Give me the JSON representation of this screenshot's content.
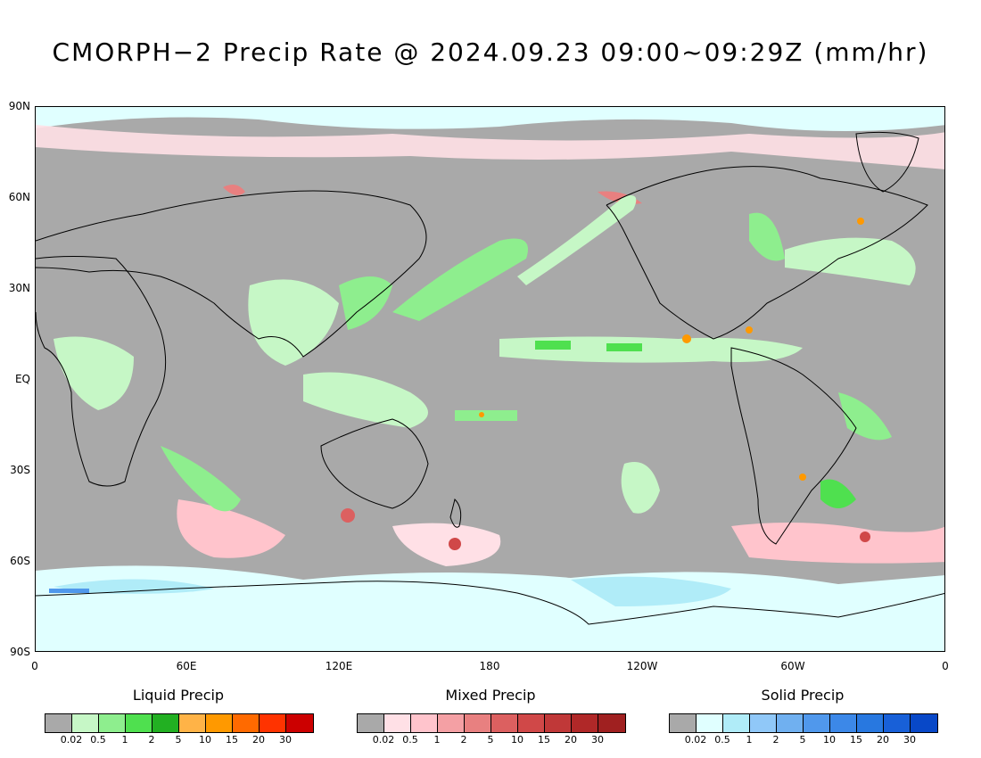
{
  "title": "CMORPH−2 Precip Rate @ 2024.09.23 09:00~09:29Z (mm/hr)",
  "lat_labels": [
    "90N",
    "60N",
    "30N",
    "EQ",
    "30S",
    "60S",
    "90S"
  ],
  "lon_labels": [
    "0",
    "60E",
    "120E",
    "180",
    "120W",
    "60W",
    "0"
  ],
  "colors": {
    "background_gray": "#a9a9a9",
    "coast": "#000000"
  },
  "legends": [
    {
      "title": "Liquid Precip",
      "colors": [
        "#a9a9a9",
        "#c6f7c6",
        "#8eee8e",
        "#4fe04f",
        "#22b022",
        "#ffb347",
        "#ff9900",
        "#ff6a00",
        "#ff3300",
        "#cc0000"
      ],
      "labels": [
        "0.02",
        "0.5",
        "1",
        "2",
        "5",
        "10",
        "15",
        "20",
        "30"
      ]
    },
    {
      "title": "Mixed Precip",
      "colors": [
        "#a9a9a9",
        "#ffe0e6",
        "#ffc4cc",
        "#f4a0a4",
        "#e88080",
        "#dc6060",
        "#d04848",
        "#c03838",
        "#b02828",
        "#a02020"
      ],
      "labels": [
        "0.02",
        "0.5",
        "1",
        "2",
        "5",
        "10",
        "15",
        "20",
        "30"
      ]
    },
    {
      "title": "Solid Precip",
      "colors": [
        "#a9a9a9",
        "#e0ffff",
        "#b0ecf8",
        "#90c8f8",
        "#70b0f0",
        "#5098ec",
        "#3c88e8",
        "#2878e0",
        "#1860d8",
        "#0848c8"
      ],
      "labels": [
        "0.02",
        "0.5",
        "1",
        "2",
        "5",
        "10",
        "15",
        "20",
        "30"
      ]
    }
  ]
}
